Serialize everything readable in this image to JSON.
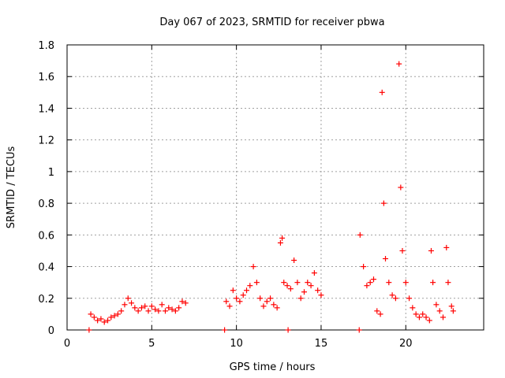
{
  "chart_data": {
    "type": "scatter",
    "title": "Day 067 of 2023, SRMTID for receiver pbwa",
    "xlabel": "GPS time / hours",
    "ylabel": "SRMTID / TECUs",
    "xlim": [
      0,
      24.6
    ],
    "ylim": [
      0,
      1.8
    ],
    "xticks": [
      0,
      5,
      10,
      15,
      20
    ],
    "yticks": [
      0,
      0.2,
      0.4,
      0.6,
      0.8,
      1,
      1.2,
      1.4,
      1.6,
      1.8
    ],
    "ytick_labels": [
      "0",
      "0.2",
      "0.4",
      "0.6",
      "0.8",
      "1",
      "1.2",
      "1.4",
      "1.6",
      "1.8"
    ],
    "grid": true,
    "marker": "+",
    "color": "#ff0000",
    "series": [
      {
        "name": "SRMTID",
        "points": [
          [
            1.3,
            0.0
          ],
          [
            9.3,
            0.0
          ],
          [
            13.05,
            0.0
          ],
          [
            17.25,
            0.0
          ],
          [
            1.4,
            0.1
          ],
          [
            1.6,
            0.08
          ],
          [
            1.8,
            0.06
          ],
          [
            2.0,
            0.07
          ],
          [
            2.2,
            0.05
          ],
          [
            2.4,
            0.06
          ],
          [
            2.6,
            0.08
          ],
          [
            2.8,
            0.09
          ],
          [
            3.0,
            0.1
          ],
          [
            3.2,
            0.12
          ],
          [
            3.4,
            0.16
          ],
          [
            3.6,
            0.2
          ],
          [
            3.8,
            0.17
          ],
          [
            4.0,
            0.14
          ],
          [
            4.2,
            0.12
          ],
          [
            4.4,
            0.14
          ],
          [
            4.6,
            0.15
          ],
          [
            4.8,
            0.12
          ],
          [
            5.0,
            0.15
          ],
          [
            5.2,
            0.13
          ],
          [
            5.4,
            0.12
          ],
          [
            5.6,
            0.16
          ],
          [
            5.8,
            0.12
          ],
          [
            6.0,
            0.14
          ],
          [
            6.2,
            0.13
          ],
          [
            6.4,
            0.12
          ],
          [
            6.6,
            0.14
          ],
          [
            6.8,
            0.18
          ],
          [
            7.0,
            0.17
          ],
          [
            9.4,
            0.18
          ],
          [
            9.6,
            0.15
          ],
          [
            9.8,
            0.25
          ],
          [
            10.0,
            0.2
          ],
          [
            10.2,
            0.18
          ],
          [
            10.4,
            0.22
          ],
          [
            10.6,
            0.25
          ],
          [
            10.8,
            0.28
          ],
          [
            11.0,
            0.4
          ],
          [
            11.2,
            0.3
          ],
          [
            11.4,
            0.2
          ],
          [
            11.6,
            0.15
          ],
          [
            11.8,
            0.18
          ],
          [
            12.0,
            0.2
          ],
          [
            12.2,
            0.16
          ],
          [
            12.4,
            0.14
          ],
          [
            12.6,
            0.55
          ],
          [
            12.7,
            0.58
          ],
          [
            12.8,
            0.3
          ],
          [
            13.0,
            0.28
          ],
          [
            13.2,
            0.26
          ],
          [
            13.4,
            0.44
          ],
          [
            13.6,
            0.3
          ],
          [
            13.8,
            0.2
          ],
          [
            14.0,
            0.24
          ],
          [
            14.2,
            0.3
          ],
          [
            14.4,
            0.28
          ],
          [
            14.6,
            0.36
          ],
          [
            14.8,
            0.25
          ],
          [
            15.0,
            0.22
          ],
          [
            17.3,
            0.6
          ],
          [
            17.5,
            0.4
          ],
          [
            17.7,
            0.28
          ],
          [
            17.9,
            0.3
          ],
          [
            18.1,
            0.32
          ],
          [
            18.3,
            0.12
          ],
          [
            18.5,
            0.1
          ],
          [
            18.6,
            1.5
          ],
          [
            18.7,
            0.8
          ],
          [
            18.8,
            0.45
          ],
          [
            19.0,
            0.3
          ],
          [
            19.2,
            0.22
          ],
          [
            19.4,
            0.2
          ],
          [
            19.6,
            1.68
          ],
          [
            19.7,
            0.9
          ],
          [
            19.8,
            0.5
          ],
          [
            20.0,
            0.3
          ],
          [
            20.2,
            0.2
          ],
          [
            20.4,
            0.14
          ],
          [
            20.6,
            0.1
          ],
          [
            20.8,
            0.08
          ],
          [
            21.0,
            0.1
          ],
          [
            21.2,
            0.08
          ],
          [
            21.4,
            0.06
          ],
          [
            21.5,
            0.5
          ],
          [
            21.6,
            0.3
          ],
          [
            21.8,
            0.16
          ],
          [
            22.0,
            0.12
          ],
          [
            22.2,
            0.08
          ],
          [
            22.4,
            0.52
          ],
          [
            22.5,
            0.3
          ],
          [
            22.7,
            0.15
          ],
          [
            22.8,
            0.12
          ]
        ]
      }
    ]
  }
}
